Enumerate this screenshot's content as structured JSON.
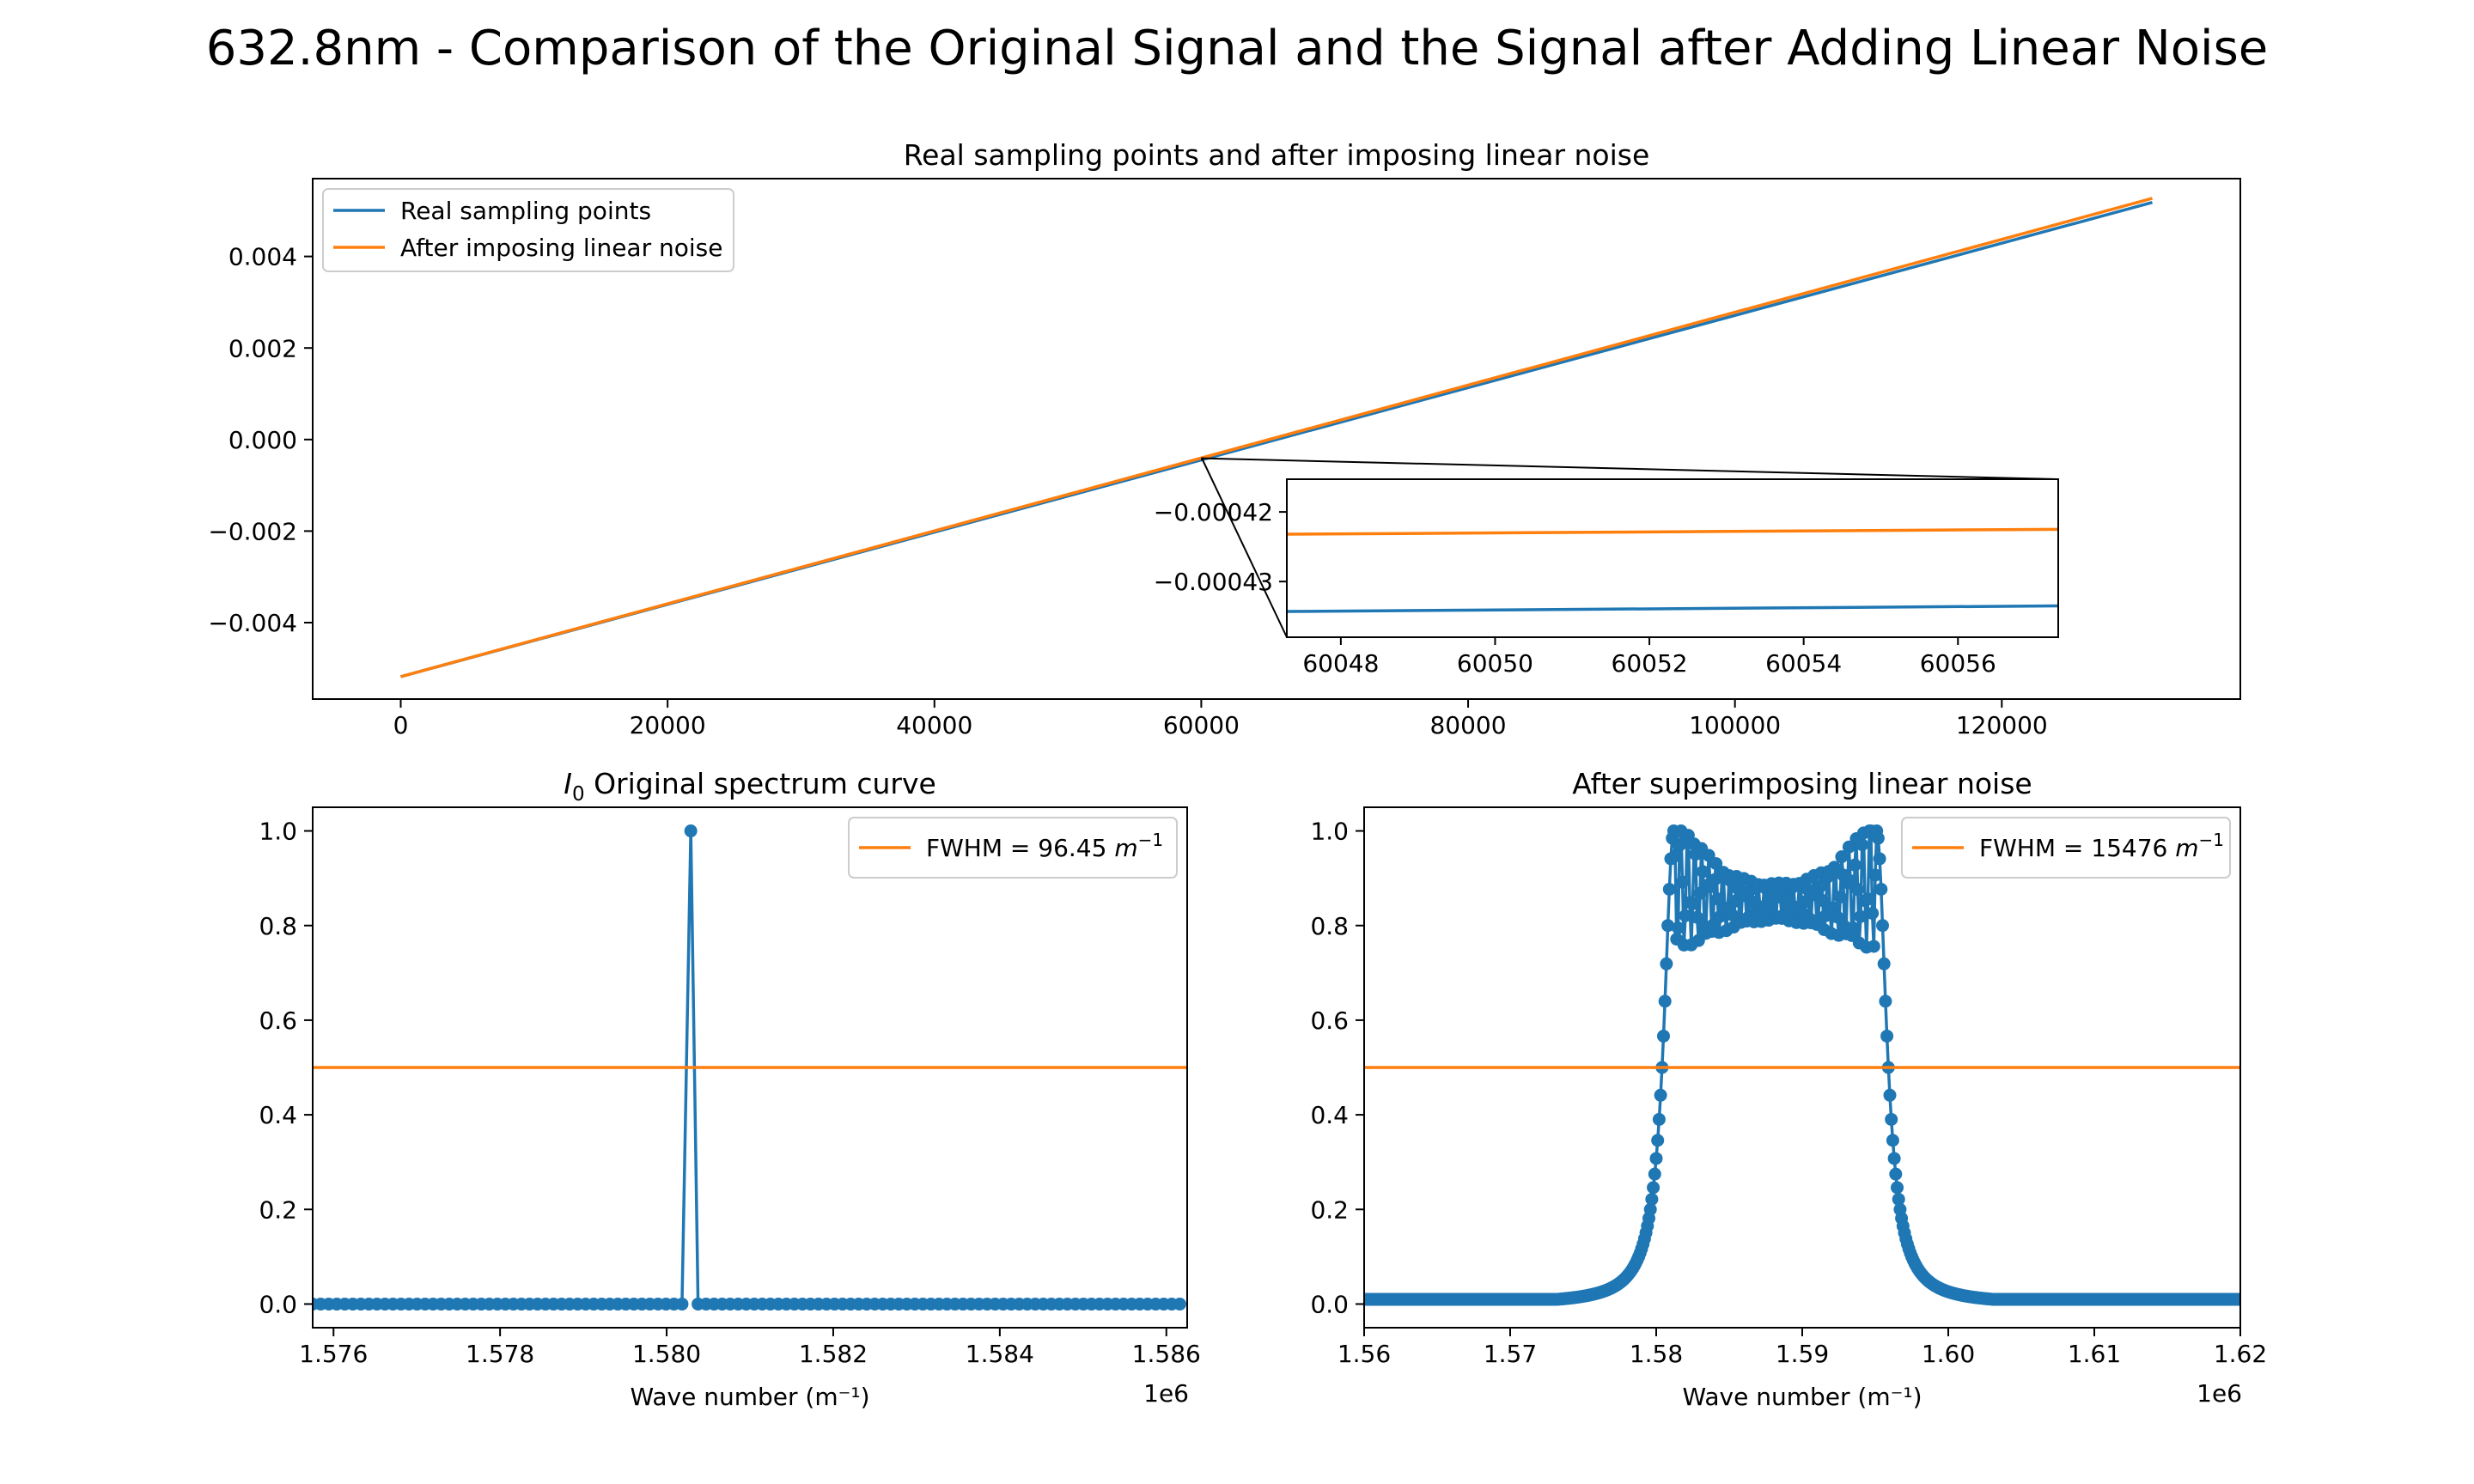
{
  "figure": {
    "suptitle": "632.8nm - Comparison of the Original Signal and the Signal after Adding Linear Noise"
  },
  "chart_data": [
    {
      "type": "line",
      "title": "Real sampling points and after imposing linear noise",
      "xlabel": "",
      "ylabel": "",
      "xlim": [
        -6600,
        137880
      ],
      "ylim": [
        -0.00567,
        0.0057
      ],
      "xticks": [
        0,
        20000,
        40000,
        60000,
        80000,
        100000,
        120000
      ],
      "xtick_labels": [
        "0",
        "20000",
        "40000",
        "60000",
        "80000",
        "100000",
        "120000"
      ],
      "yticks": [
        -0.004,
        -0.002,
        0.0,
        0.002,
        0.004
      ],
      "ytick_labels": [
        "−0.004",
        "−0.002",
        "0.000",
        "0.002",
        "0.004"
      ],
      "legend": {
        "placement": "upper-left"
      },
      "series": [
        {
          "name": "Real sampling points",
          "color": "#1f77b4",
          "x": [
            0,
            131280
          ],
          "y": [
            -0.00518,
            0.00518
          ]
        },
        {
          "name": "After imposing linear noise",
          "color": "#ff7f0e",
          "x": [
            0,
            131280
          ],
          "y": [
            -0.00518,
            0.00527
          ]
        }
      ],
      "inset": {
        "xlim": [
          60047.3,
          60057.3
        ],
        "ylim": [
          -0.000438,
          -0.0004153
        ],
        "xticks": [
          60048,
          60050,
          60052,
          60054,
          60056
        ],
        "xtick_labels": [
          "60048",
          "60050",
          "60052",
          "60054",
          "60056"
        ],
        "yticks": [
          -0.00042,
          -0.00043
        ],
        "ytick_labels": [
          "−0.00042",
          "−0.00043"
        ],
        "series": [
          {
            "color": "#1f77b4",
            "x": [
              60047.3,
              60057.3
            ],
            "y": [
              -0.0004343,
              -0.0004335
            ]
          },
          {
            "color": "#ff7f0e",
            "x": [
              60047.3,
              60057.3
            ],
            "y": [
              -0.0004232,
              -0.0004225
            ]
          }
        ],
        "indicated_region": {
          "x": [
            60047,
            60058
          ],
          "y": [
            -0.00044,
            -0.00041
          ]
        }
      }
    },
    {
      "type": "line",
      "title_sym": "I",
      "title_sub": "0",
      "title_rest": " Original spectrum curve",
      "xlabel": "Wave number (m⁻¹)",
      "ylabel": "",
      "offset_text": "1e6",
      "xlim": [
        1.57575,
        1.58625
      ],
      "ylim": [
        -0.05,
        1.05
      ],
      "xticks": [
        1.576,
        1.578,
        1.58,
        1.582,
        1.584,
        1.586
      ],
      "xtick_labels": [
        "1.576",
        "1.578",
        "1.580",
        "1.582",
        "1.584",
        "1.586"
      ],
      "yticks": [
        0.0,
        0.2,
        0.4,
        0.6,
        0.8,
        1.0
      ],
      "ytick_labels": [
        "0.0",
        "0.2",
        "0.4",
        "0.6",
        "0.8",
        "1.0"
      ],
      "legend": {
        "placement": "upper-right"
      },
      "spectrum": {
        "color": "#1f77b4",
        "x_start": 1.57575,
        "x_end": 1.58625,
        "step": 9.64e-05,
        "peak_x": 1.58029,
        "peak_y": 1.0
      },
      "fwhm_line": {
        "name": "FWHM = 96.45 m⁻¹",
        "label_prefix": "FWHM = 96.45 ",
        "label_unit": "m",
        "label_exp": "−1",
        "y": 0.5,
        "color": "#ff7f0e"
      }
    },
    {
      "type": "line",
      "title": "After superimposing linear noise",
      "xlabel": "Wave number (m⁻¹)",
      "ylabel": "",
      "offset_text": "1e6",
      "xlim": [
        1.56,
        1.62
      ],
      "ylim": [
        -0.05,
        1.05
      ],
      "xticks": [
        1.56,
        1.57,
        1.58,
        1.59,
        1.6,
        1.61,
        1.62
      ],
      "xtick_labels": [
        "1.56",
        "1.57",
        "1.58",
        "1.59",
        "1.60",
        "1.61",
        "1.62"
      ],
      "yticks": [
        0.0,
        0.2,
        0.4,
        0.6,
        0.8,
        1.0
      ],
      "ytick_labels": [
        "0.0",
        "0.2",
        "0.4",
        "0.6",
        "0.8",
        "1.0"
      ],
      "legend": {
        "placement": "upper-right"
      },
      "spectrum": {
        "color": "#1f77b4",
        "x_start": 1.56,
        "x_end": 1.62,
        "step": 0.0001,
        "band": [
          1.5812,
          1.5951
        ],
        "edge_half_points": [
          1.5805,
          1.5958
        ],
        "plateau_mid": 0.85,
        "edge_peak": 1.0,
        "tail_floor": 0.01
      },
      "fwhm_line": {
        "name": "FWHM = 15476 m⁻¹",
        "label_prefix": "FWHM = 15476 ",
        "label_unit": "m",
        "label_exp": "−1",
        "y": 0.5,
        "color": "#ff7f0e"
      }
    }
  ]
}
